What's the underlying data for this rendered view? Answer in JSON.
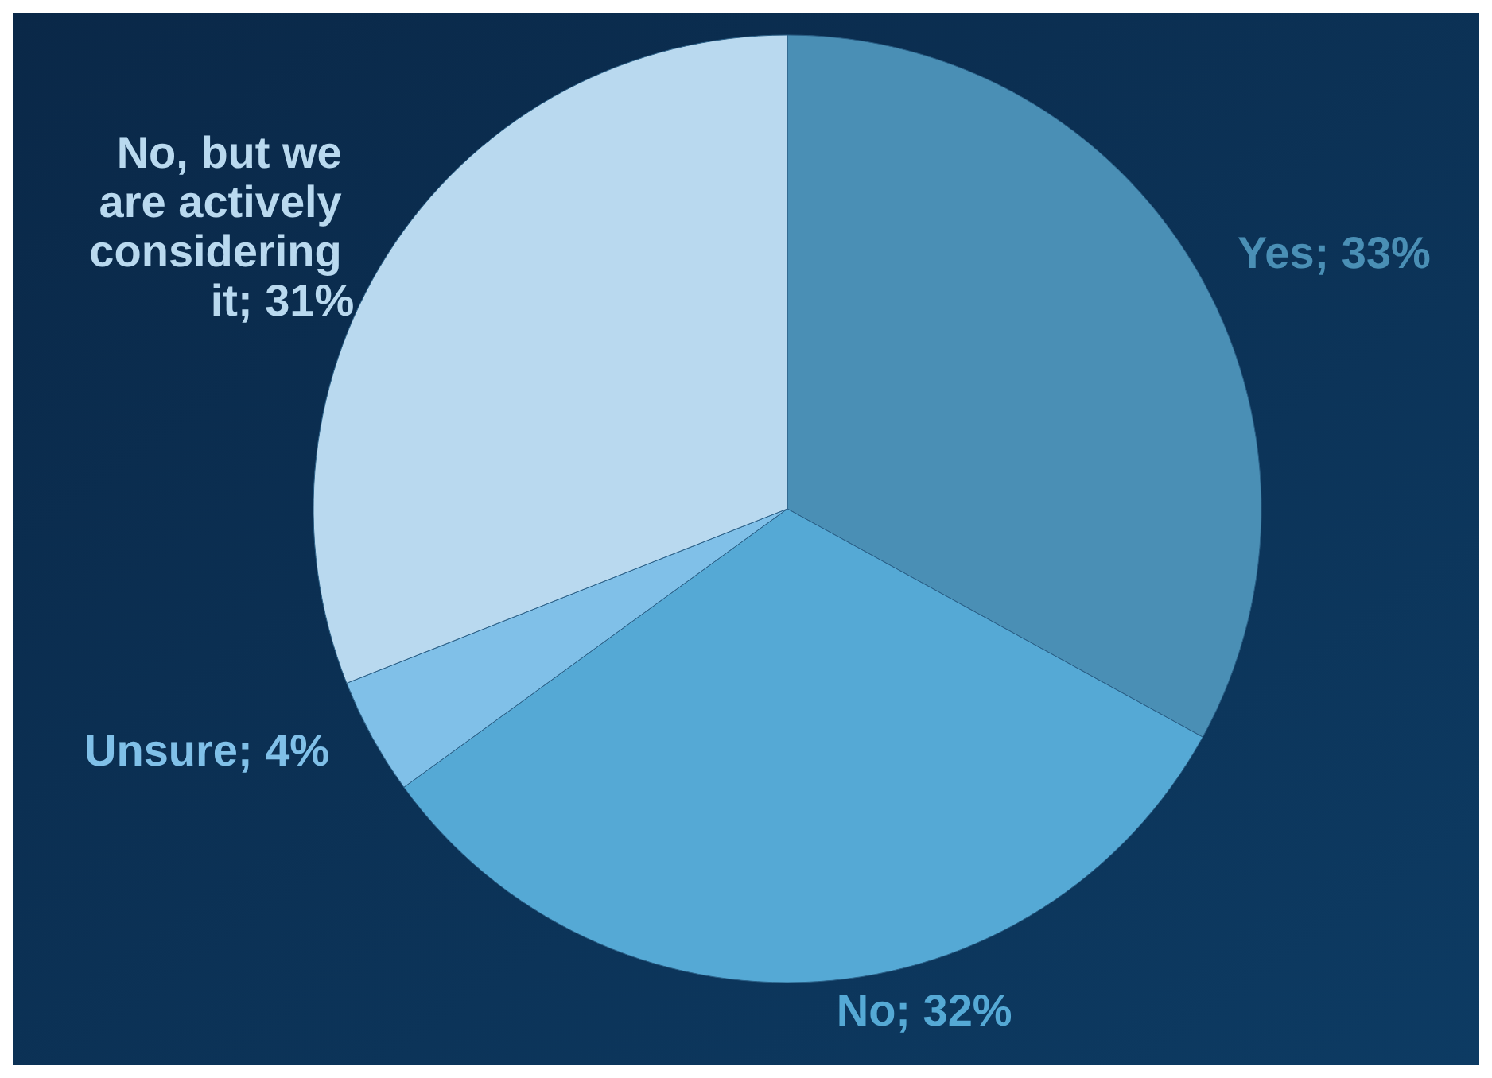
{
  "chart_data": {
    "type": "pie",
    "categories": [
      "Yes",
      "No",
      "Unsure",
      "No, but we are actively considering it"
    ],
    "values": [
      33,
      32,
      4,
      31
    ],
    "colors": [
      "#4a8fb5",
      "#55a9d5",
      "#80c0e8",
      "#b9d9ef"
    ],
    "value_labels": [
      "33%",
      "32%",
      "4%",
      "31%"
    ]
  }
}
